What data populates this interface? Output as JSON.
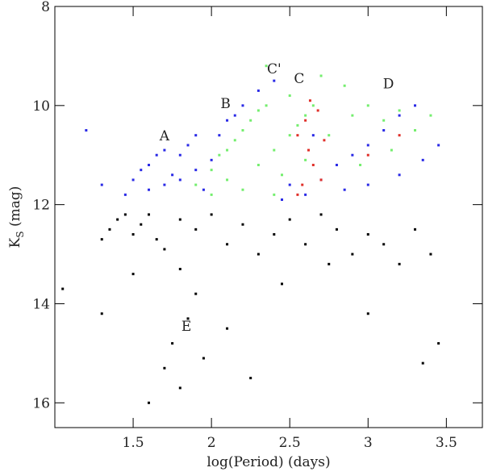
{
  "chart_data": {
    "type": "scatter",
    "xlabel": "log(Period) (days)",
    "ylabel": {
      "main": "K",
      "sub": "S",
      "unit": " (mag)"
    },
    "xlim": [
      1.0,
      3.73
    ],
    "ylim": [
      8,
      16.5
    ],
    "y_inverted": true,
    "xticks": [
      1.5,
      2,
      2.5,
      3,
      3.5
    ],
    "yticks": [
      8,
      10,
      12,
      14,
      16
    ],
    "annotations": [
      {
        "text": "A",
        "x": 1.7,
        "y": 10.7
      },
      {
        "text": "B",
        "x": 2.09,
        "y": 10.05
      },
      {
        "text": "C'",
        "x": 2.4,
        "y": 9.35
      },
      {
        "text": "C",
        "x": 2.56,
        "y": 9.55
      },
      {
        "text": "D",
        "x": 3.13,
        "y": 9.65
      },
      {
        "text": "E",
        "x": 1.84,
        "y": 14.55
      }
    ],
    "series": [
      {
        "name": "black",
        "color": "#000000",
        "x": [
          1.3,
          1.35,
          1.4,
          1.45,
          1.5,
          1.55,
          1.6,
          1.65,
          1.7,
          1.8,
          1.9,
          2.0,
          2.1,
          2.2,
          2.3,
          2.4,
          2.5,
          2.6,
          2.7,
          2.8,
          2.9,
          3.0,
          3.1,
          3.2,
          3.3,
          3.4,
          1.8,
          1.9,
          1.85,
          1.75,
          1.7,
          1.8,
          1.95,
          2.1,
          1.5,
          1.3,
          1.05,
          3.35,
          3.45,
          2.45,
          2.75,
          1.6,
          2.25,
          3.0
        ],
        "y": [
          12.7,
          12.5,
          12.3,
          12.2,
          12.6,
          12.4,
          12.2,
          12.7,
          12.9,
          12.3,
          12.5,
          12.2,
          12.8,
          12.4,
          13.0,
          12.6,
          12.3,
          12.8,
          12.2,
          12.5,
          13.0,
          12.6,
          12.8,
          13.2,
          12.5,
          13.0,
          13.3,
          13.8,
          14.3,
          14.8,
          15.3,
          15.7,
          15.1,
          14.5,
          13.4,
          14.2,
          13.7,
          15.2,
          14.8,
          13.6,
          13.2,
          16.0,
          15.5,
          14.2
        ]
      },
      {
        "name": "blue",
        "color": "#2a2ae6",
        "x": [
          1.45,
          1.5,
          1.55,
          1.6,
          1.65,
          1.7,
          1.75,
          1.8,
          1.85,
          1.9,
          1.6,
          1.7,
          1.8,
          1.9,
          2.0,
          2.05,
          2.1,
          2.15,
          2.2,
          2.3,
          2.4,
          1.95,
          2.5,
          2.6,
          2.7,
          2.8,
          2.9,
          3.0,
          3.1,
          3.2,
          3.3,
          2.85,
          3.0,
          3.2,
          3.35,
          1.3,
          2.45,
          2.65,
          1.2,
          3.45
        ],
        "y": [
          11.8,
          11.5,
          11.3,
          11.2,
          11.0,
          10.9,
          11.4,
          11.0,
          10.8,
          10.6,
          11.7,
          11.6,
          11.5,
          11.3,
          11.1,
          10.6,
          10.3,
          10.2,
          10.0,
          9.7,
          9.5,
          11.7,
          11.6,
          11.8,
          11.5,
          11.2,
          11.0,
          10.8,
          10.5,
          10.2,
          10.0,
          11.7,
          11.6,
          11.4,
          11.1,
          11.6,
          11.9,
          10.6,
          10.5,
          10.8
        ]
      },
      {
        "name": "green",
        "color": "#74ee6e",
        "x": [
          1.9,
          2.0,
          2.05,
          2.1,
          2.15,
          2.2,
          2.25,
          2.3,
          2.35,
          2.1,
          2.3,
          2.4,
          2.5,
          2.55,
          2.6,
          2.65,
          2.5,
          2.7,
          2.45,
          2.6,
          2.75,
          2.9,
          3.0,
          3.1,
          3.2,
          3.3,
          2.85,
          2.95,
          3.15,
          2.0,
          2.2,
          2.4,
          3.4,
          2.35
        ],
        "y": [
          11.6,
          11.3,
          11.0,
          10.9,
          10.7,
          10.5,
          10.3,
          10.1,
          10.0,
          11.5,
          11.2,
          10.9,
          10.6,
          10.4,
          10.2,
          10.0,
          9.8,
          9.4,
          11.4,
          11.1,
          10.6,
          10.2,
          10.0,
          10.3,
          10.1,
          10.5,
          9.6,
          11.2,
          10.9,
          11.8,
          11.7,
          11.8,
          10.2,
          9.2
        ]
      },
      {
        "name": "red",
        "color": "#e0302a",
        "x": [
          2.55,
          2.6,
          2.62,
          2.65,
          2.68,
          2.7,
          2.58,
          2.55,
          2.72,
          2.63,
          3.2,
          3.0
        ],
        "y": [
          10.6,
          10.3,
          10.9,
          11.2,
          10.1,
          11.5,
          11.6,
          11.8,
          10.7,
          9.9,
          10.6,
          11.0
        ]
      }
    ]
  }
}
